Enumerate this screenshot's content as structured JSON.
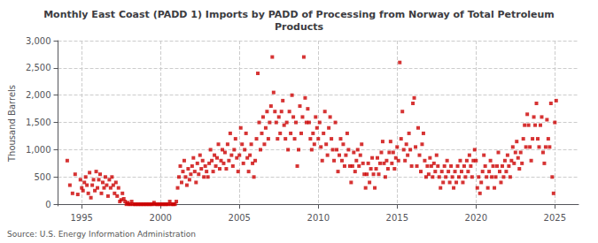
{
  "chart_data": {
    "type": "scatter",
    "title": "Monthly East Coast (PADD 1) Imports by PADD of Processing from Norway of Total Petroleum\nProducts",
    "ylabel": "Thousand Barrels",
    "annotation": "Source: U.S. Energy Information Administration",
    "color": "#cc0000",
    "marker": "square",
    "grid": true,
    "xlim": [
      1993.5,
      2026.5
    ],
    "ylim": [
      -30,
      3000
    ],
    "xticks": [
      1995,
      2000,
      2005,
      2010,
      2015,
      2020,
      2025
    ],
    "yticks": [
      0,
      500,
      {
        "value": 1000,
        "label": "1,000"
      },
      {
        "value": 1500,
        "label": "1,500"
      },
      {
        "value": 2000,
        "label": "2,000"
      },
      {
        "value": 2500,
        "label": "2,500"
      },
      {
        "value": 3000,
        "label": "3,000"
      }
    ],
    "x": [
      1994.083,
      1994.25,
      1994.417,
      1994.583,
      1994.75,
      1994.917,
      1995.0,
      1995.083,
      1995.167,
      1995.25,
      1995.333,
      1995.417,
      1995.5,
      1995.583,
      1995.667,
      1995.75,
      1995.833,
      1995.917,
      1996.0,
      1996.083,
      1996.167,
      1996.25,
      1996.333,
      1996.417,
      1996.5,
      1996.583,
      1996.667,
      1996.75,
      1996.833,
      1996.917,
      1997.0,
      1997.083,
      1997.167,
      1997.25,
      1997.333,
      1997.417,
      1997.5,
      1997.583,
      1997.667,
      1997.75,
      1997.833,
      1997.917,
      1998.0,
      1998.083,
      1998.167,
      1998.25,
      1998.333,
      1998.417,
      1998.5,
      1998.583,
      1998.667,
      1998.75,
      1998.833,
      1998.917,
      1999.0,
      1999.083,
      1999.167,
      1999.25,
      1999.333,
      1999.417,
      1999.5,
      1999.583,
      1999.667,
      1999.75,
      1999.833,
      1999.917,
      2000.0,
      2000.083,
      2000.167,
      2000.25,
      2000.333,
      2000.417,
      2000.5,
      2000.583,
      2000.667,
      2000.75,
      2000.833,
      2000.917,
      2001.0,
      2001.083,
      2001.167,
      2001.25,
      2001.333,
      2001.417,
      2001.5,
      2001.583,
      2001.667,
      2001.75,
      2001.833,
      2001.917,
      2002.0,
      2002.083,
      2002.167,
      2002.25,
      2002.333,
      2002.417,
      2002.5,
      2002.583,
      2002.667,
      2002.75,
      2002.833,
      2002.917,
      2003.0,
      2003.083,
      2003.167,
      2003.25,
      2003.333,
      2003.417,
      2003.5,
      2003.583,
      2003.667,
      2003.75,
      2003.833,
      2003.917,
      2004.0,
      2004.083,
      2004.167,
      2004.25,
      2004.333,
      2004.417,
      2004.5,
      2004.583,
      2004.667,
      2004.75,
      2004.833,
      2004.917,
      2005.0,
      2005.083,
      2005.167,
      2005.25,
      2005.333,
      2005.417,
      2005.5,
      2005.583,
      2005.667,
      2005.75,
      2005.833,
      2005.917,
      2006.0,
      2006.083,
      2006.167,
      2006.25,
      2006.333,
      2006.417,
      2006.5,
      2006.583,
      2006.667,
      2006.75,
      2006.833,
      2006.917,
      2007.0,
      2007.083,
      2007.167,
      2007.25,
      2007.333,
      2007.417,
      2007.5,
      2007.583,
      2007.667,
      2007.75,
      2007.833,
      2007.917,
      2008.0,
      2008.083,
      2008.167,
      2008.25,
      2008.333,
      2008.417,
      2008.5,
      2008.583,
      2008.667,
      2008.75,
      2008.833,
      2008.917,
      2009.0,
      2009.083,
      2009.167,
      2009.25,
      2009.333,
      2009.417,
      2009.5,
      2009.583,
      2009.667,
      2009.75,
      2009.833,
      2009.917,
      2010.0,
      2010.083,
      2010.167,
      2010.25,
      2010.333,
      2010.417,
      2010.5,
      2010.583,
      2010.667,
      2010.75,
      2010.833,
      2010.917,
      2011.0,
      2011.083,
      2011.167,
      2011.25,
      2011.333,
      2011.417,
      2011.5,
      2011.583,
      2011.667,
      2011.75,
      2011.833,
      2011.917,
      2012.0,
      2012.083,
      2012.167,
      2012.25,
      2012.333,
      2012.417,
      2012.5,
      2012.583,
      2012.667,
      2012.75,
      2012.833,
      2012.917,
      2013.0,
      2013.083,
      2013.167,
      2013.25,
      2013.333,
      2013.417,
      2013.5,
      2013.583,
      2013.667,
      2013.75,
      2013.833,
      2013.917,
      2014.0,
      2014.083,
      2014.167,
      2014.25,
      2014.333,
      2014.417,
      2014.5,
      2014.583,
      2014.667,
      2014.75,
      2014.833,
      2014.917,
      2015.0,
      2015.083,
      2015.167,
      2015.25,
      2015.333,
      2015.417,
      2015.5,
      2015.583,
      2015.667,
      2015.75,
      2015.833,
      2015.917,
      2016.0,
      2016.083,
      2016.167,
      2016.25,
      2016.333,
      2016.417,
      2016.5,
      2016.583,
      2016.667,
      2016.75,
      2016.833,
      2016.917,
      2017.0,
      2017.083,
      2017.167,
      2017.25,
      2017.333,
      2017.417,
      2017.5,
      2017.583,
      2017.667,
      2017.75,
      2017.833,
      2017.917,
      2018.0,
      2018.083,
      2018.167,
      2018.25,
      2018.333,
      2018.417,
      2018.5,
      2018.583,
      2018.667,
      2018.75,
      2018.833,
      2018.917,
      2019.0,
      2019.083,
      2019.167,
      2019.25,
      2019.333,
      2019.417,
      2019.5,
      2019.583,
      2019.667,
      2019.75,
      2019.833,
      2019.917,
      2020.0,
      2020.083,
      2020.167,
      2020.25,
      2020.333,
      2020.417,
      2020.5,
      2020.583,
      2020.667,
      2020.75,
      2020.833,
      2020.917,
      2021.0,
      2021.083,
      2021.167,
      2021.25,
      2021.333,
      2021.417,
      2021.5,
      2021.583,
      2021.667,
      2021.75,
      2021.833,
      2021.917,
      2022.0,
      2022.083,
      2022.167,
      2022.25,
      2022.333,
      2022.417,
      2022.5,
      2022.583,
      2022.667,
      2022.75,
      2022.833,
      2022.917,
      2023.0,
      2023.083,
      2023.167,
      2023.25,
      2023.333,
      2023.417,
      2023.5,
      2023.583,
      2023.667,
      2023.75,
      2023.833,
      2023.917,
      2024.0,
      2024.083,
      2024.167,
      2024.25,
      2024.333,
      2024.417,
      2024.5,
      2024.583,
      2024.667,
      2024.75,
      2024.833,
      2024.917,
      2025.0,
      2025.083
    ],
    "values": [
      800,
      350,
      200,
      550,
      180,
      450,
      300,
      250,
      400,
      500,
      350,
      200,
      580,
      120,
      350,
      450,
      250,
      600,
      300,
      450,
      550,
      200,
      400,
      300,
      500,
      350,
      150,
      450,
      300,
      500,
      350,
      200,
      400,
      150,
      300,
      50,
      80,
      200,
      100,
      50,
      0,
      30,
      0,
      0,
      50,
      0,
      0,
      0,
      0,
      0,
      0,
      0,
      0,
      0,
      0,
      0,
      0,
      0,
      0,
      0,
      0,
      30,
      0,
      0,
      0,
      0,
      0,
      0,
      0,
      0,
      0,
      0,
      0,
      50,
      0,
      0,
      0,
      0,
      50,
      300,
      500,
      700,
      400,
      600,
      800,
      500,
      350,
      650,
      450,
      550,
      700,
      850,
      600,
      400,
      750,
      550,
      900,
      650,
      800,
      500,
      700,
      600,
      500,
      750,
      1000,
      800,
      600,
      900,
      700,
      850,
      1100,
      650,
      800,
      1000,
      750,
      950,
      650,
      1100,
      800,
      1300,
      900,
      700,
      1000,
      1200,
      850,
      600,
      900,
      1400,
      1100,
      750,
      1000,
      1300,
      850,
      600,
      900,
      1100,
      750,
      500,
      800,
      1200,
      2400,
      1500,
      1000,
      1300,
      1600,
      1100,
      1400,
      1700,
      1200,
      1500,
      1800,
      2700,
      2050,
      1700,
      1500,
      1200,
      1600,
      1300,
      1700,
      1900,
      1450,
      1200,
      1500,
      1000,
      1700,
      1300,
      2000,
      1600,
      1200,
      1500,
      700,
      1000,
      1800,
      1300,
      1600,
      2700,
      1950,
      1500,
      1750,
      1500,
      1200,
      1000,
      1300,
      1100,
      1600,
      1400,
      1200,
      1500,
      1050,
      800,
      1300,
      1700,
      1100,
      900,
      1400,
      1600,
      1200,
      1000,
      800,
      1500,
      1000,
      600,
      900,
      1200,
      800,
      1100,
      700,
      900,
      1300,
      1000,
      700,
      400,
      700,
      950,
      600,
      800,
      1000,
      700,
      900,
      1100,
      750,
      550,
      300,
      550,
      750,
      400,
      650,
      850,
      550,
      300,
      650,
      850,
      550,
      750,
      950,
      1150,
      750,
      500,
      800,
      650,
      950,
      1150,
      750,
      950,
      650,
      850,
      1050,
      800,
      2600,
      1200,
      1700,
      1000,
      800,
      1100,
      900,
      1300,
      1000,
      700,
      1850,
      1950,
      1050,
      700,
      1400,
      900,
      600,
      1100,
      1300,
      800,
      500,
      700,
      550,
      850,
      700,
      500,
      750,
      600,
      900,
      700,
      500,
      300,
      600,
      400,
      700,
      500,
      800,
      600,
      400,
      700,
      500,
      300,
      600,
      400,
      700,
      500,
      800,
      600,
      400,
      700,
      500,
      800,
      600,
      900,
      700,
      500,
      800,
      1000,
      800,
      300,
      500,
      200,
      400,
      600,
      900,
      700,
      500,
      300,
      600,
      800,
      500,
      700,
      300,
      500,
      700,
      950,
      600,
      400,
      700,
      500,
      800,
      600,
      900,
      700,
      500,
      800,
      1050,
      750,
      950,
      1150,
      850,
      650,
      950,
      750,
      1200,
      1450,
      1050,
      1650,
      1450,
      1050,
      800,
      1200,
      1600,
      1450,
      1850,
      1200,
      1050,
      1450,
      1600,
      950,
      750,
      1050,
      1550,
      1200,
      1050,
      1850,
      500,
      200,
      1500,
      1900
    ]
  }
}
